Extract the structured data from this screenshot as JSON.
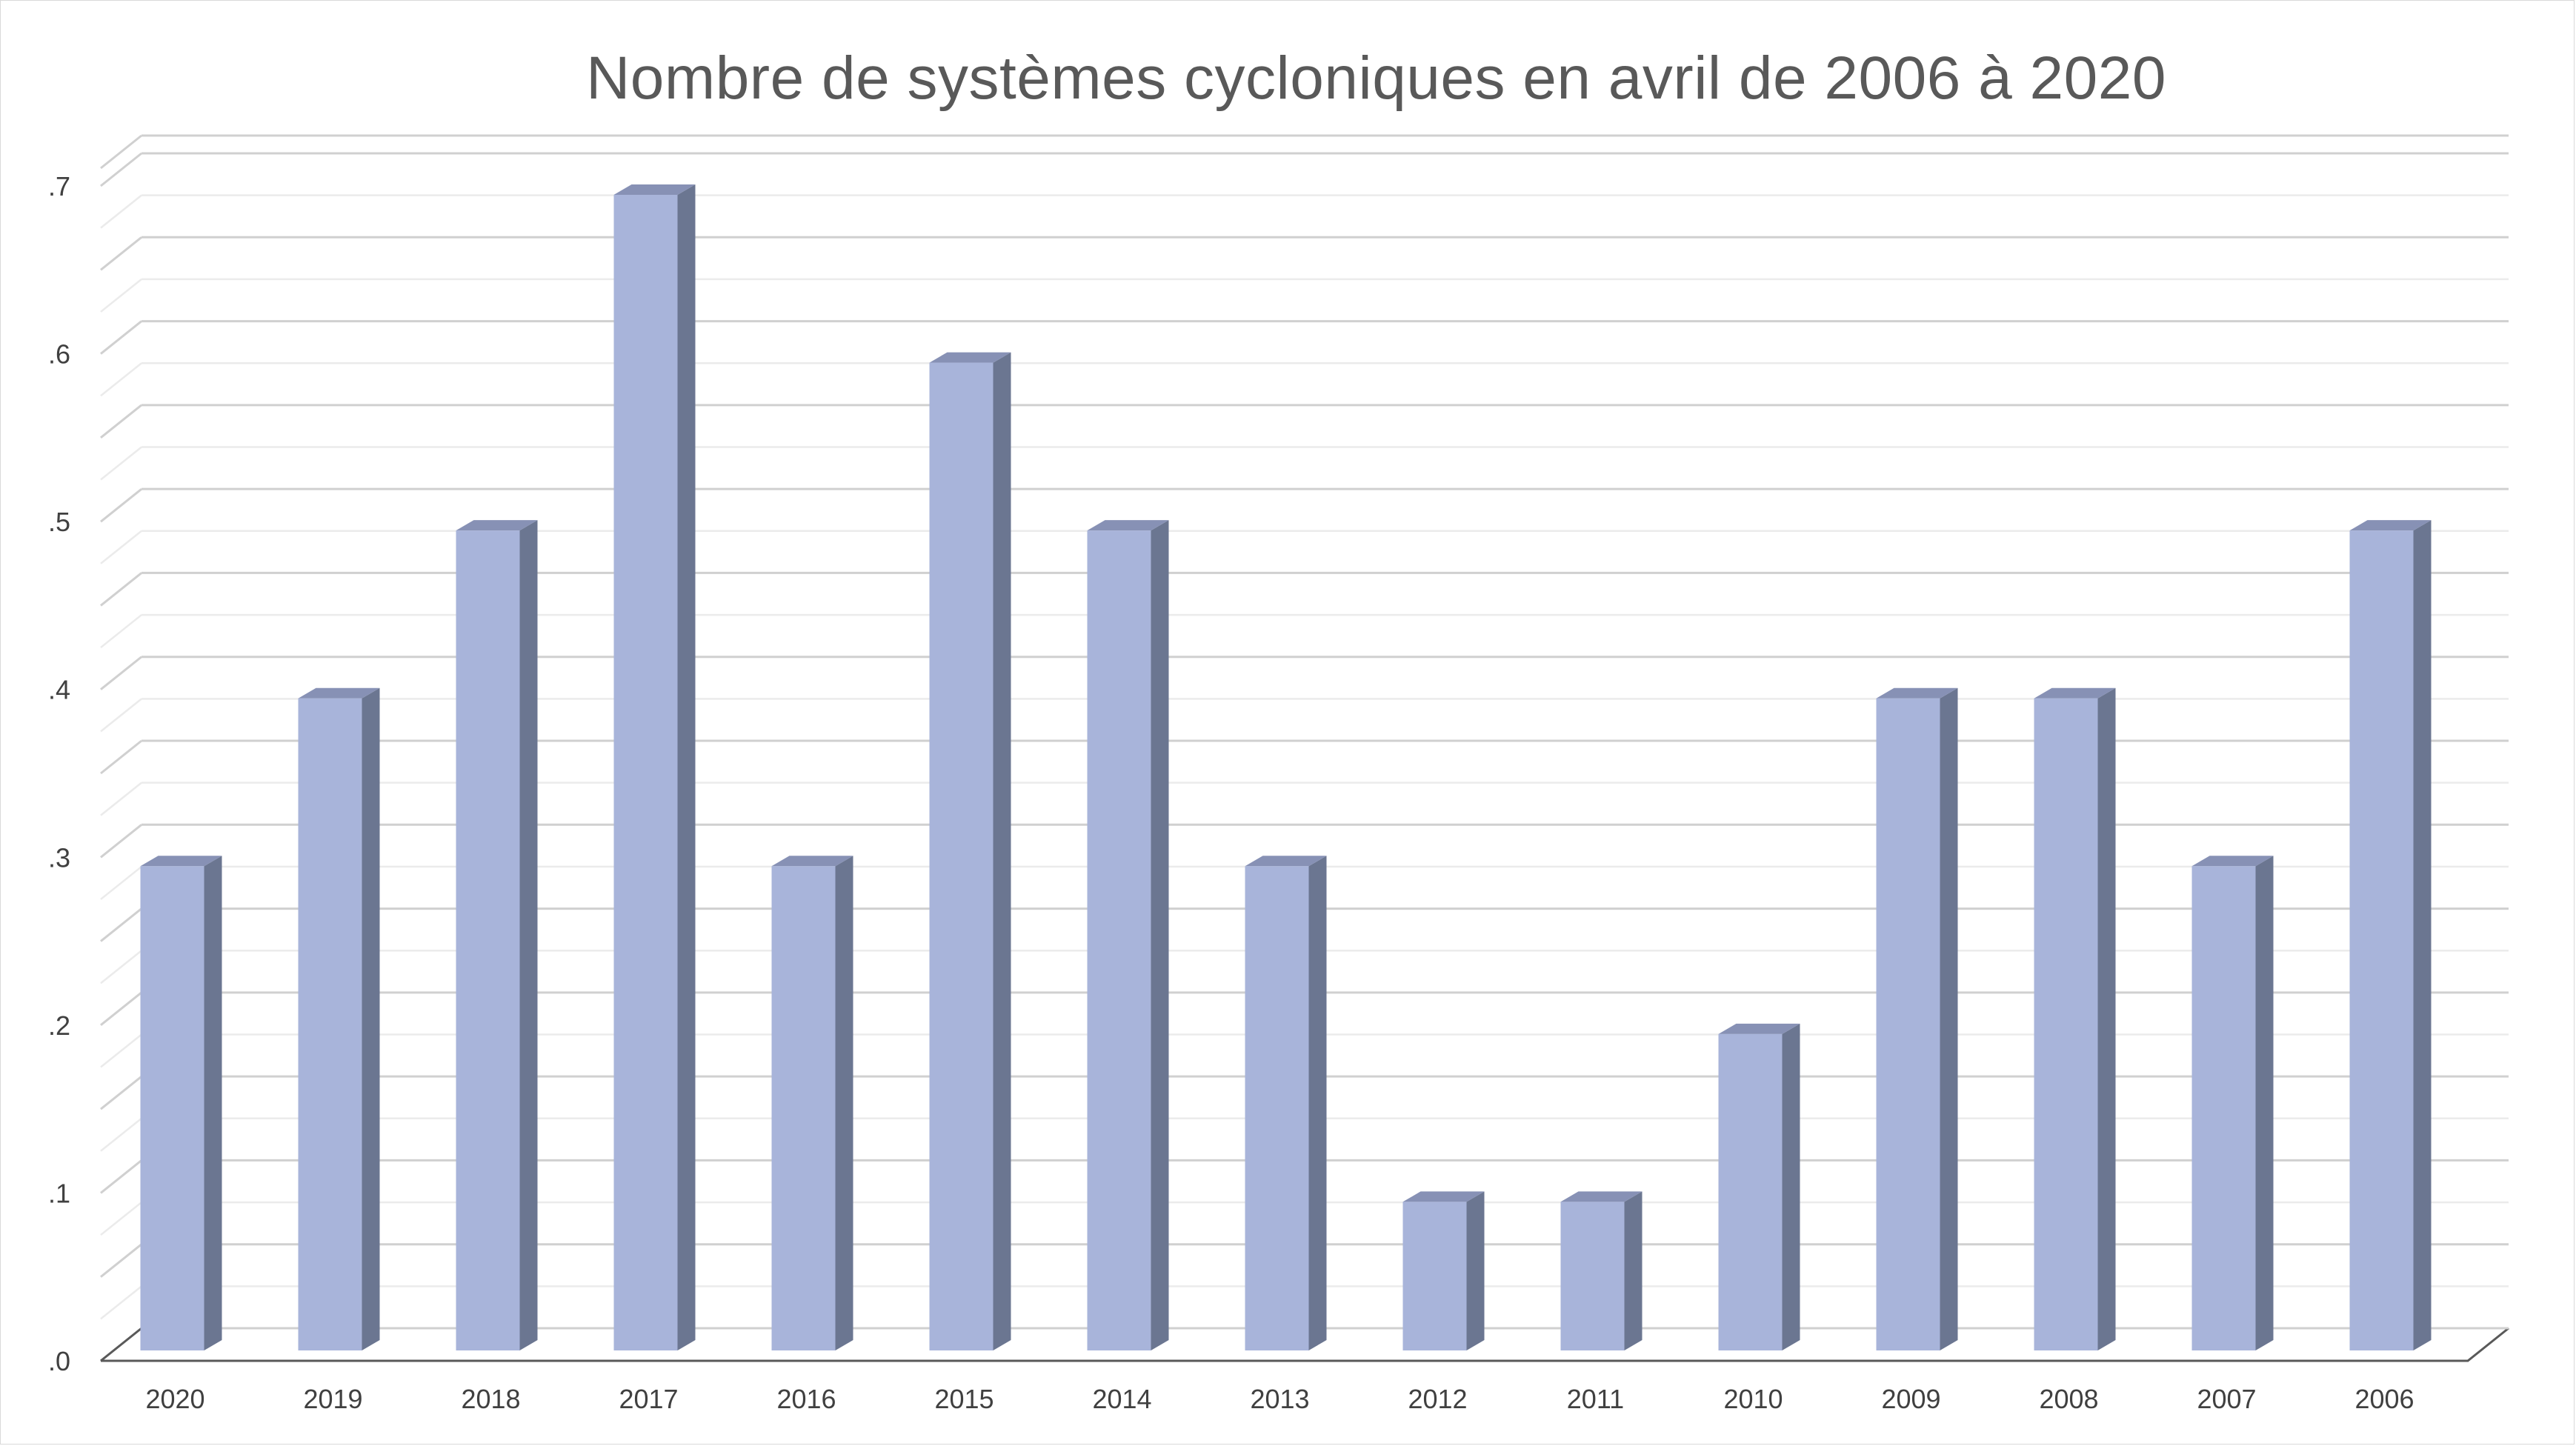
{
  "chart_data": {
    "type": "bar",
    "title": "Nombre de systèmes cycloniques en avril de 2006 à 2020",
    "categories": [
      "2020",
      "2019",
      "2018",
      "2017",
      "2016",
      "2015",
      "2014",
      "2013",
      "2012",
      "2011",
      "2010",
      "2009",
      "2008",
      "2007",
      "2006"
    ],
    "values": [
      0.3,
      0.4,
      0.5,
      0.7,
      0.3,
      0.6,
      0.5,
      0.3,
      0.1,
      0.1,
      0.2,
      0.4,
      0.4,
      0.3,
      0.5
    ],
    "ylim": [
      0,
      0.7
    ],
    "yticks": [
      0,
      0.1,
      0.2,
      0.3,
      0.4,
      0.5,
      0.6,
      0.7
    ],
    "ytick_labels": [
      ".0",
      ".1",
      ".2",
      ".3",
      ".4",
      ".5",
      ".6",
      ".7"
    ],
    "xlabel": "",
    "ylabel": "",
    "grid": true,
    "style": "3d-column",
    "colors": {
      "bar_front": "#a8b4da",
      "bar_side": "#6b7691",
      "bar_top": "#8791b5",
      "major_grid": "#d0d0d0",
      "minor_grid": "#ebebeb",
      "axis": "#595959"
    }
  }
}
